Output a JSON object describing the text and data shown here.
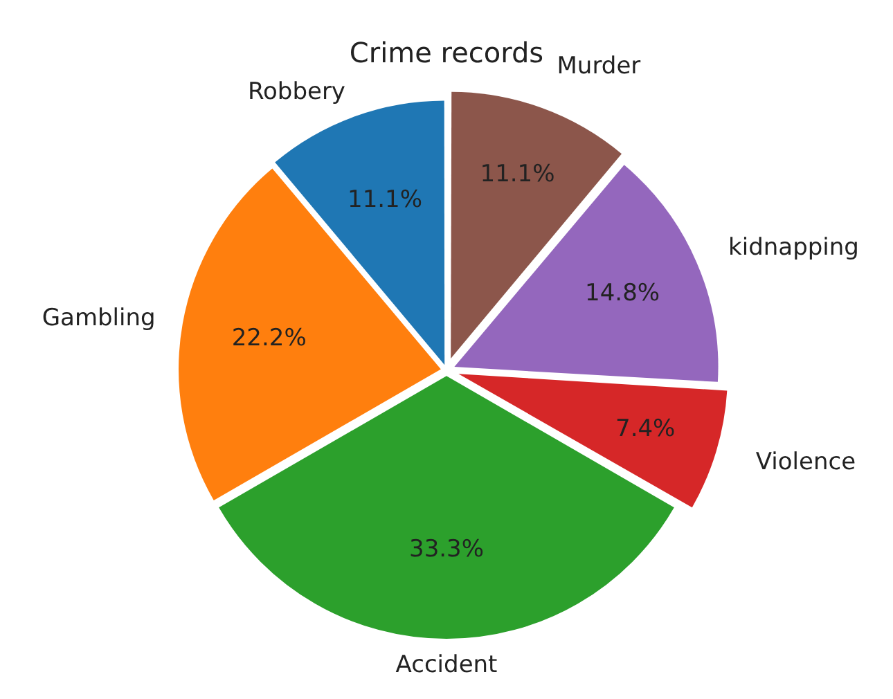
{
  "chart_data": {
    "type": "pie",
    "title": "Crime records",
    "categories": [
      "Robbery",
      "Gambling",
      "Accident",
      "Violence",
      "kidnapping",
      "Murder"
    ],
    "values": [
      11.1,
      22.2,
      33.3,
      7.4,
      14.8,
      11.1
    ],
    "colors": [
      "#1f77b4",
      "#ff7f0e",
      "#2ca02c",
      "#d62728",
      "#9467bd",
      "#8c564b"
    ],
    "value_labels": [
      "11.1%",
      "22.2%",
      "33.3%",
      "7.4%",
      "14.8%",
      "11.1%"
    ],
    "legend": false
  }
}
